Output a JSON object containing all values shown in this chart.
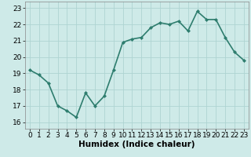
{
  "x": [
    0,
    1,
    2,
    3,
    4,
    5,
    6,
    7,
    8,
    9,
    10,
    11,
    12,
    13,
    14,
    15,
    16,
    17,
    18,
    19,
    20,
    21,
    22,
    23
  ],
  "y": [
    19.2,
    18.9,
    18.4,
    17.0,
    16.7,
    16.3,
    17.8,
    17.0,
    17.6,
    19.2,
    20.9,
    21.1,
    21.2,
    21.8,
    22.1,
    22.0,
    22.2,
    21.6,
    22.8,
    22.3,
    22.3,
    21.2,
    20.3,
    19.8
  ],
  "line_color": "#2e7d6e",
  "marker": "D",
  "marker_size": 2.0,
  "bg_color": "#ceeae8",
  "grid_color": "#aed4d2",
  "xlabel": "Humidex (Indice chaleur)",
  "xlabel_fontsize": 7.5,
  "yticks": [
    16,
    17,
    18,
    19,
    20,
    21,
    22,
    23
  ],
  "xticks": [
    0,
    1,
    2,
    3,
    4,
    5,
    6,
    7,
    8,
    9,
    10,
    11,
    12,
    13,
    14,
    15,
    16,
    17,
    18,
    19,
    20,
    21,
    22,
    23
  ],
  "ylim": [
    15.6,
    23.4
  ],
  "xlim": [
    -0.5,
    23.5
  ],
  "tick_fontsize": 6.5,
  "line_width": 1.2
}
